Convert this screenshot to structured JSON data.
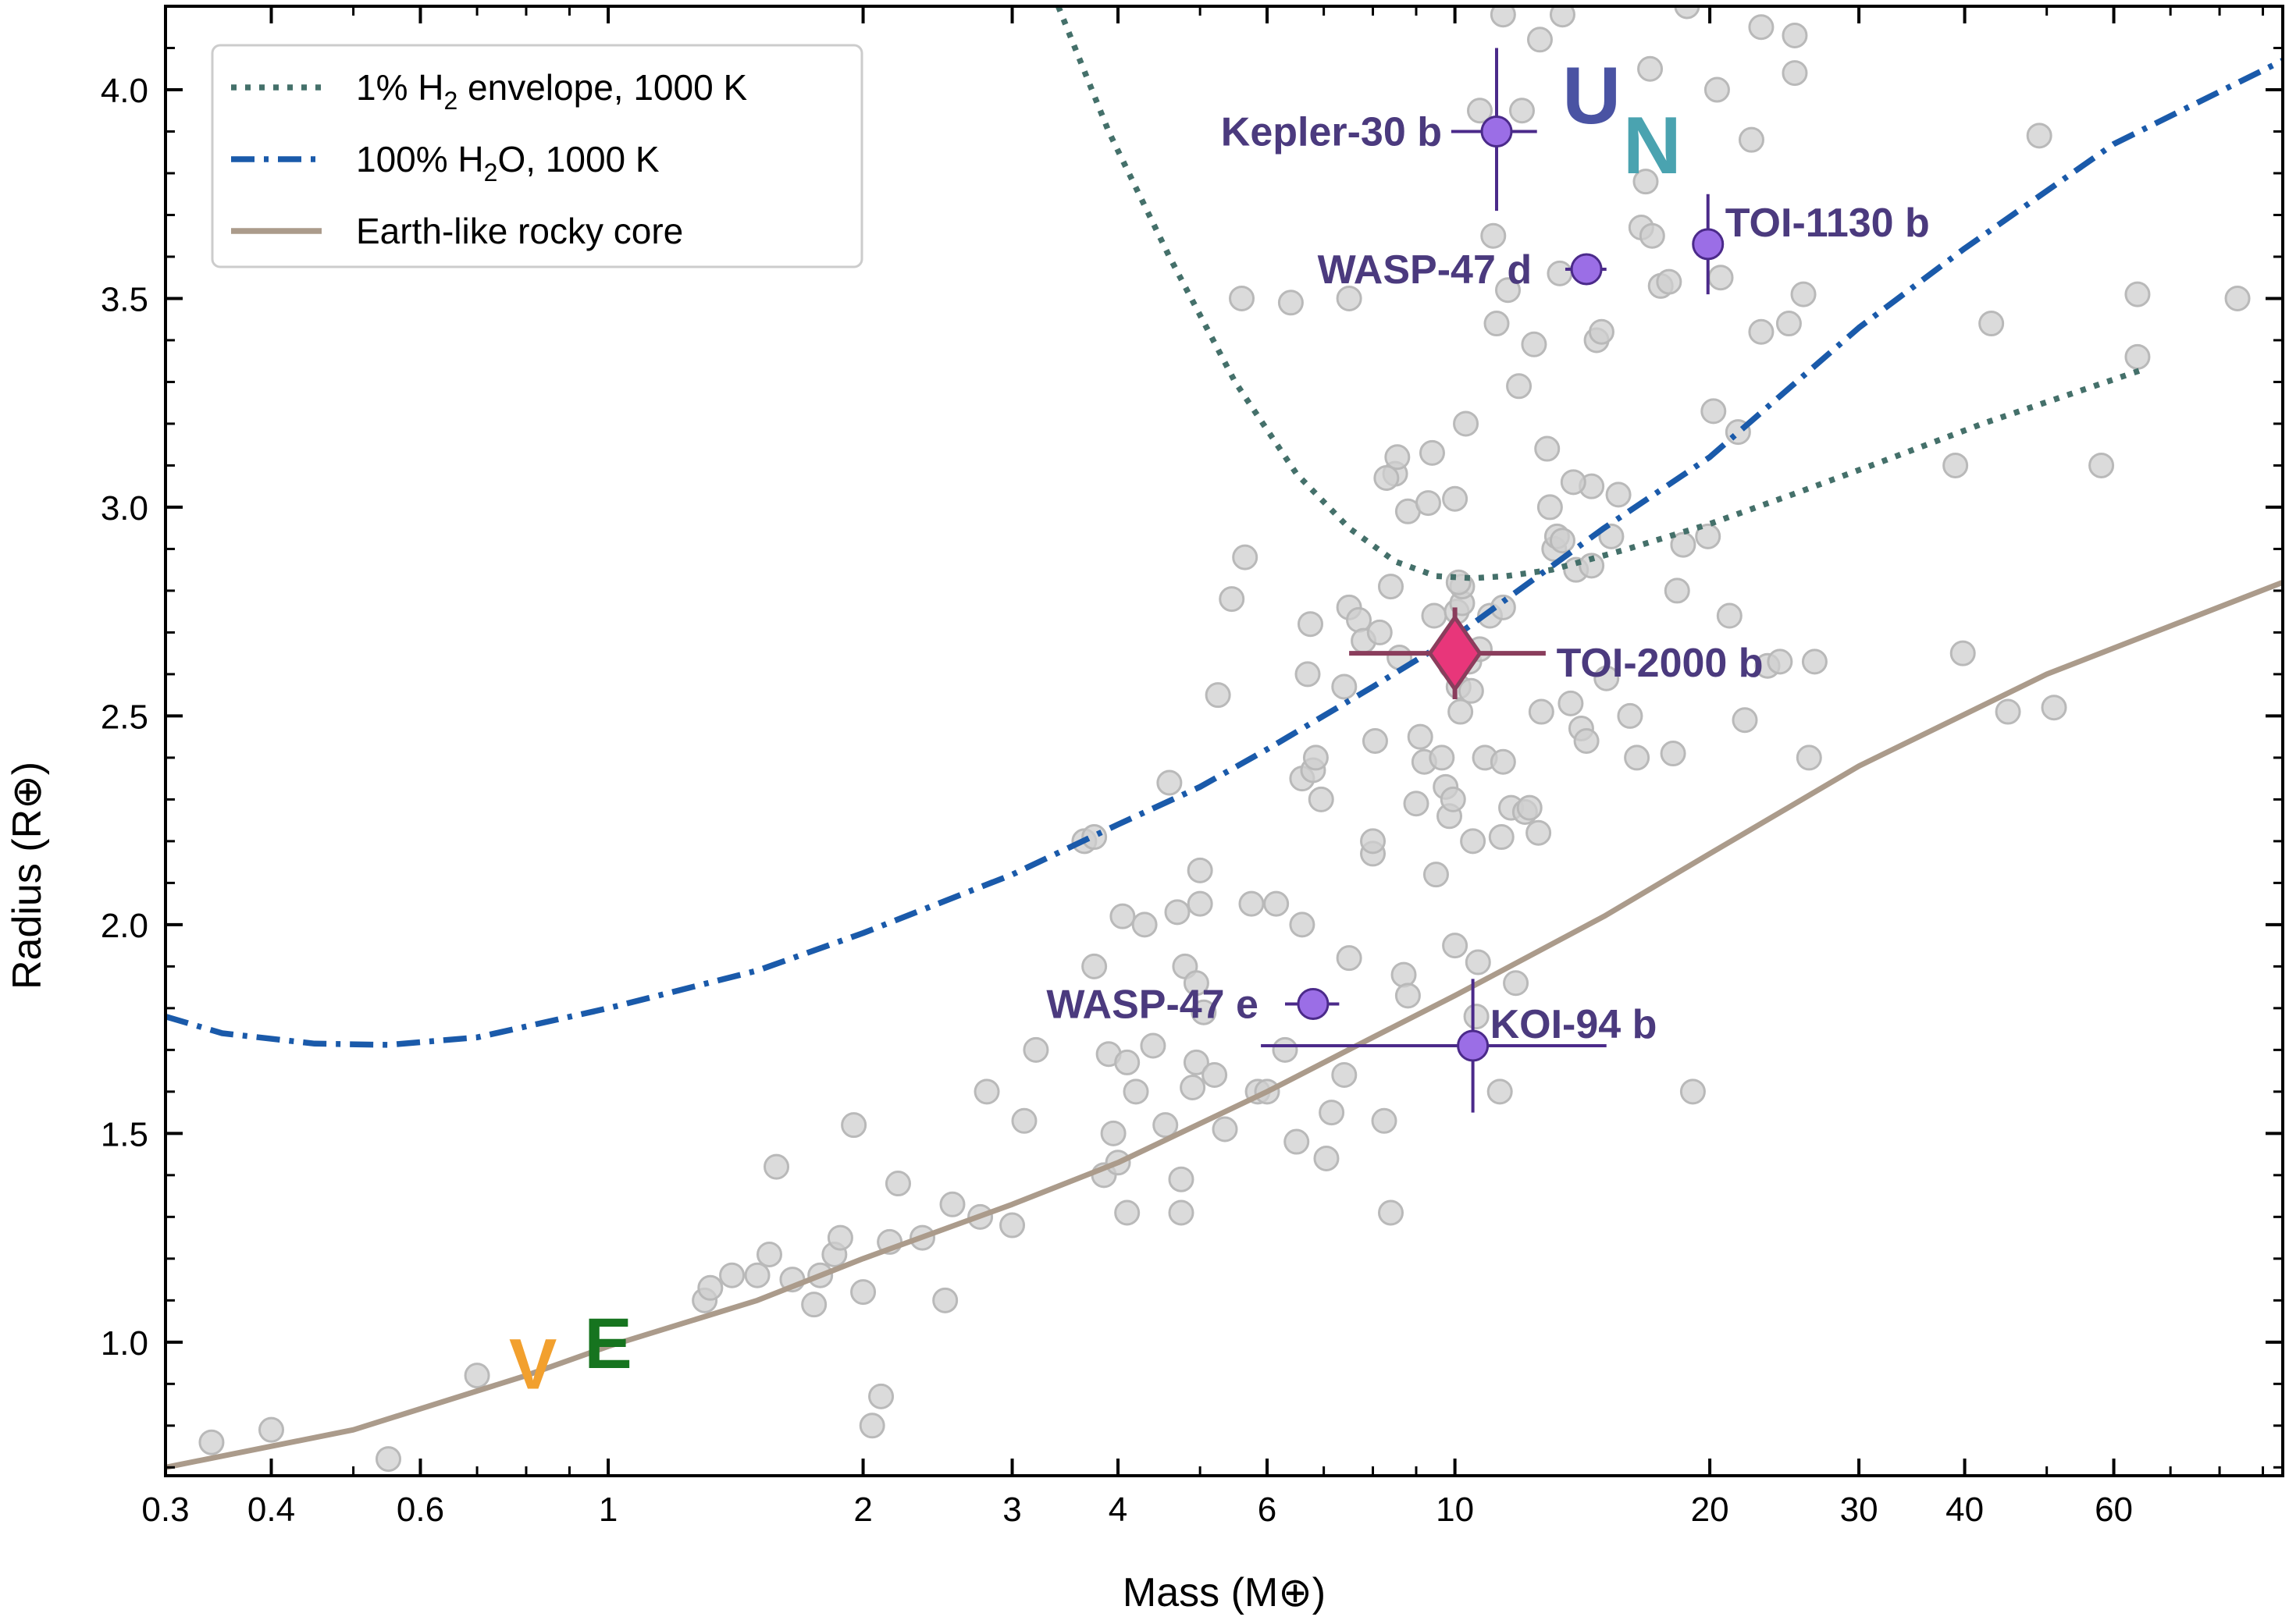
{
  "chart_data": {
    "type": "scatter",
    "xlabel": "Mass (M⊕)",
    "ylabel": "Radius (R⊕)",
    "xscale": "log",
    "xlim": [
      0.3,
      95
    ],
    "ylim": [
      0.68,
      4.2
    ],
    "x_ticks": [
      0.3,
      0.4,
      0.6,
      1,
      2,
      3,
      4,
      6,
      10,
      20,
      30,
      40,
      60
    ],
    "x_tick_labels": [
      "0.3",
      "0.4",
      "0.6",
      "1",
      "2",
      "3",
      "4",
      "6",
      "10",
      "20",
      "30",
      "40",
      "60"
    ],
    "y_ticks": [
      1.0,
      1.5,
      2.0,
      2.5,
      3.0,
      3.5,
      4.0
    ],
    "y_tick_labels": [
      "1.0",
      "1.5",
      "2.0",
      "2.5",
      "3.0",
      "3.5",
      "4.0"
    ],
    "grid": false,
    "legend": {
      "placement": "top-left",
      "entries": [
        {
          "label_parts": [
            "1% H",
            "2",
            " envelope, 1000 K"
          ],
          "style": "dotted",
          "color": "#44706a"
        },
        {
          "label_parts": [
            "100% H",
            "2",
            "O, 1000 K"
          ],
          "style": "dashdot",
          "color": "#1a5aaa"
        },
        {
          "label_parts": [
            "Earth-like rocky core",
            "",
            ""
          ],
          "style": "solid",
          "color": "#ab9b8b"
        }
      ]
    },
    "curves": [
      {
        "style": "dotted",
        "color": "#44706a",
        "points": [
          [
            3.4,
            4.2
          ],
          [
            3.9,
            3.9
          ],
          [
            4.6,
            3.6
          ],
          [
            5.5,
            3.3
          ],
          [
            6.5,
            3.08
          ],
          [
            7.5,
            2.95
          ],
          [
            8.5,
            2.87
          ],
          [
            9.5,
            2.835
          ],
          [
            10.5,
            2.83
          ],
          [
            11.5,
            2.835
          ],
          [
            13,
            2.85
          ],
          [
            16,
            2.9
          ],
          [
            20,
            2.96
          ],
          [
            25,
            3.03
          ],
          [
            32,
            3.11
          ],
          [
            42,
            3.2
          ],
          [
            55,
            3.28
          ],
          [
            65,
            3.33
          ]
        ]
      },
      {
        "style": "dashdot",
        "color": "#1a5aaa",
        "points": [
          [
            0.3,
            1.78
          ],
          [
            0.35,
            1.74
          ],
          [
            0.45,
            1.715
          ],
          [
            0.55,
            1.712
          ],
          [
            0.7,
            1.73
          ],
          [
            1.0,
            1.8
          ],
          [
            1.5,
            1.89
          ],
          [
            2.0,
            1.98
          ],
          [
            3.0,
            2.12
          ],
          [
            4.0,
            2.24
          ],
          [
            5.0,
            2.33
          ],
          [
            6.0,
            2.42
          ],
          [
            8.0,
            2.57
          ],
          [
            10.0,
            2.69
          ],
          [
            15.0,
            2.95
          ],
          [
            20.0,
            3.12
          ],
          [
            30.0,
            3.43
          ],
          [
            40.0,
            3.62
          ],
          [
            60.0,
            3.87
          ],
          [
            95.0,
            4.07
          ]
        ]
      },
      {
        "style": "solid",
        "color": "#ab9b8b",
        "points": [
          [
            0.3,
            0.7
          ],
          [
            0.5,
            0.79
          ],
          [
            0.8,
            0.92
          ],
          [
            1.0,
            0.99
          ],
          [
            1.5,
            1.1
          ],
          [
            2.0,
            1.2
          ],
          [
            3.0,
            1.33
          ],
          [
            4.0,
            1.43
          ],
          [
            6.0,
            1.6
          ],
          [
            8.0,
            1.73
          ],
          [
            10.0,
            1.83
          ],
          [
            15.0,
            2.02
          ],
          [
            20.0,
            2.17
          ],
          [
            30.0,
            2.38
          ],
          [
            50.0,
            2.6
          ],
          [
            95.0,
            2.82
          ]
        ]
      }
    ],
    "background_points": [
      [
        0.34,
        0.76
      ],
      [
        0.4,
        0.79
      ],
      [
        0.55,
        0.72
      ],
      [
        0.7,
        0.92
      ],
      [
        1.3,
        1.1
      ],
      [
        1.32,
        1.13
      ],
      [
        1.4,
        1.16
      ],
      [
        1.5,
        1.16
      ],
      [
        1.55,
        1.21
      ],
      [
        1.58,
        1.42
      ],
      [
        1.65,
        1.15
      ],
      [
        1.75,
        1.09
      ],
      [
        1.78,
        1.16
      ],
      [
        1.85,
        1.21
      ],
      [
        1.88,
        1.25
      ],
      [
        1.95,
        1.52
      ],
      [
        2.0,
        1.12
      ],
      [
        2.05,
        0.8
      ],
      [
        2.1,
        0.87
      ],
      [
        2.15,
        1.24
      ],
      [
        2.2,
        1.38
      ],
      [
        2.35,
        1.25
      ],
      [
        2.55,
        1.33
      ],
      [
        2.75,
        1.3
      ],
      [
        2.8,
        1.6
      ],
      [
        3.0,
        1.28
      ],
      [
        3.1,
        1.53
      ],
      [
        3.65,
        2.2
      ],
      [
        3.75,
        2.21
      ],
      [
        3.75,
        1.9
      ],
      [
        3.85,
        1.4
      ],
      [
        3.9,
        1.69
      ],
      [
        3.95,
        1.5
      ],
      [
        4.0,
        1.43
      ],
      [
        4.1,
        1.31
      ],
      [
        4.2,
        1.6
      ],
      [
        4.1,
        1.67
      ],
      [
        4.05,
        2.02
      ],
      [
        4.3,
        2.0
      ],
      [
        4.4,
        1.71
      ],
      [
        4.55,
        1.52
      ],
      [
        4.6,
        2.34
      ],
      [
        4.7,
        2.03
      ],
      [
        4.8,
        1.9
      ],
      [
        4.75,
        1.39
      ],
      [
        4.75,
        1.31
      ],
      [
        4.9,
        1.61
      ],
      [
        4.95,
        1.67
      ],
      [
        4.95,
        1.86
      ],
      [
        5.0,
        2.05
      ],
      [
        5.0,
        2.13
      ],
      [
        5.05,
        1.79
      ],
      [
        5.2,
        1.64
      ],
      [
        5.25,
        2.55
      ],
      [
        5.35,
        1.51
      ],
      [
        5.45,
        2.78
      ],
      [
        5.65,
        2.88
      ],
      [
        5.75,
        2.05
      ],
      [
        5.85,
        1.6
      ],
      [
        6.0,
        1.6
      ],
      [
        6.15,
        2.05
      ],
      [
        6.3,
        1.7
      ],
      [
        6.5,
        1.48
      ],
      [
        6.6,
        2.35
      ],
      [
        6.7,
        2.6
      ],
      [
        6.75,
        2.72
      ],
      [
        6.8,
        2.37
      ],
      [
        6.85,
        2.4
      ],
      [
        6.95,
        2.3
      ],
      [
        7.05,
        1.44
      ],
      [
        7.15,
        1.55
      ],
      [
        7.4,
        1.64
      ],
      [
        7.5,
        1.92
      ],
      [
        7.5,
        2.76
      ],
      [
        7.7,
        2.73
      ],
      [
        7.8,
        2.68
      ],
      [
        8.0,
        2.17
      ],
      [
        8.0,
        2.2
      ],
      [
        8.05,
        2.44
      ],
      [
        8.15,
        2.7
      ],
      [
        8.25,
        1.53
      ],
      [
        8.4,
        1.31
      ],
      [
        8.5,
        3.08
      ],
      [
        8.55,
        3.12
      ],
      [
        8.6,
        2.64
      ],
      [
        8.7,
        1.88
      ],
      [
        8.8,
        2.99
      ],
      [
        8.8,
        1.83
      ],
      [
        9.0,
        2.29
      ],
      [
        9.1,
        2.45
      ],
      [
        9.2,
        2.39
      ],
      [
        9.3,
        3.01
      ],
      [
        9.4,
        3.13
      ],
      [
        9.45,
        2.74
      ],
      [
        9.5,
        2.12
      ],
      [
        9.65,
        2.4
      ],
      [
        9.75,
        2.33
      ],
      [
        9.85,
        2.26
      ],
      [
        9.95,
        2.3
      ],
      [
        10.0,
        1.95
      ],
      [
        10.05,
        2.75
      ],
      [
        10.1,
        2.57
      ],
      [
        10.15,
        2.51
      ],
      [
        10.2,
        2.77
      ],
      [
        10.3,
        3.2
      ],
      [
        10.45,
        2.56
      ],
      [
        10.5,
        2.2
      ],
      [
        10.6,
        1.78
      ],
      [
        10.65,
        1.91
      ],
      [
        10.7,
        3.95
      ],
      [
        10.85,
        2.4
      ],
      [
        11.0,
        2.74
      ],
      [
        11.1,
        3.65
      ],
      [
        11.2,
        3.44
      ],
      [
        11.3,
        1.6
      ],
      [
        11.35,
        2.21
      ],
      [
        11.4,
        2.39
      ],
      [
        11.55,
        3.52
      ],
      [
        11.65,
        2.28
      ],
      [
        11.8,
        1.86
      ],
      [
        11.9,
        3.29
      ],
      [
        12.1,
        2.27
      ],
      [
        12.25,
        2.28
      ],
      [
        12.4,
        3.39
      ],
      [
        12.55,
        2.22
      ],
      [
        12.65,
        2.51
      ],
      [
        12.85,
        3.14
      ],
      [
        12.95,
        3.0
      ],
      [
        13.1,
        2.9
      ],
      [
        13.2,
        2.93
      ],
      [
        13.4,
        2.92
      ],
      [
        13.7,
        2.53
      ],
      [
        13.9,
        2.85
      ],
      [
        14.1,
        2.47
      ],
      [
        14.3,
        2.44
      ],
      [
        14.5,
        3.05
      ],
      [
        14.7,
        3.4
      ],
      [
        14.9,
        3.42
      ],
      [
        15.1,
        2.59
      ],
      [
        15.3,
        2.93
      ],
      [
        15.6,
        3.03
      ],
      [
        16.1,
        2.5
      ],
      [
        16.4,
        2.4
      ],
      [
        16.6,
        3.67
      ],
      [
        16.8,
        3.78
      ],
      [
        17.1,
        3.65
      ],
      [
        17.5,
        3.53
      ],
      [
        17.9,
        3.54
      ],
      [
        18.1,
        2.41
      ],
      [
        18.3,
        2.8
      ],
      [
        18.6,
        2.91
      ],
      [
        19.1,
        1.6
      ],
      [
        19.9,
        2.93
      ],
      [
        20.2,
        3.23
      ],
      [
        20.6,
        3.55
      ],
      [
        21.1,
        2.74
      ],
      [
        21.6,
        3.18
      ],
      [
        22.0,
        2.49
      ],
      [
        22.4,
        3.88
      ],
      [
        23.0,
        3.42
      ],
      [
        23.4,
        2.62
      ],
      [
        24.2,
        2.63
      ],
      [
        24.8,
        3.44
      ],
      [
        25.2,
        4.13
      ],
      [
        25.8,
        3.51
      ],
      [
        26.2,
        2.4
      ],
      [
        26.6,
        2.63
      ],
      [
        39.0,
        3.1
      ],
      [
        39.8,
        2.65
      ],
      [
        43.0,
        3.44
      ],
      [
        45.0,
        2.51
      ],
      [
        49.0,
        3.89
      ],
      [
        51.0,
        2.52
      ],
      [
        58.0,
        3.1
      ],
      [
        64.0,
        3.36
      ],
      [
        64.0,
        3.51
      ],
      [
        84.0,
        3.5
      ],
      [
        2.5,
        1.1
      ],
      [
        6.6,
        2.0
      ],
      [
        7.4,
        2.57
      ],
      [
        9.9,
        2.62
      ],
      [
        10.4,
        2.63
      ],
      [
        10.7,
        2.66
      ],
      [
        8.4,
        2.81
      ],
      [
        10.2,
        2.81
      ],
      [
        10.1,
        2.82
      ],
      [
        7.5,
        3.5
      ],
      [
        10.0,
        3.02
      ],
      [
        11.4,
        2.76
      ],
      [
        5.6,
        3.5
      ],
      [
        3.2,
        1.7
      ],
      [
        8.3,
        3.07
      ],
      [
        13.8,
        3.06
      ],
      [
        14.5,
        2.86
      ],
      [
        12.0,
        3.95
      ],
      [
        17.0,
        4.05
      ],
      [
        20.4,
        4.0
      ],
      [
        12.6,
        4.12
      ],
      [
        13.4,
        4.18
      ],
      [
        18.8,
        4.2
      ],
      [
        23.0,
        4.15
      ],
      [
        25.2,
        4.04
      ],
      [
        6.4,
        3.49
      ],
      [
        13.3,
        3.56
      ],
      [
        11.4,
        4.18
      ]
    ],
    "labeled_planets": [
      {
        "name": "Kepler-30b",
        "label": "Kepler-30 b",
        "x": 11.2,
        "y": 3.9,
        "x_err": [
          1.3,
          1.3
        ],
        "y_err": [
          0.19,
          0.2
        ],
        "label_side": "left"
      },
      {
        "name": "WASP-47d",
        "label": "WASP-47 d",
        "x": 14.3,
        "y": 3.57,
        "x_err": [
          0.8,
          0.8
        ],
        "y_err": [
          0.02,
          0.02
        ],
        "label_side": "left"
      },
      {
        "name": "TOI-1130b",
        "label": "TOI-1130 b",
        "x": 19.9,
        "y": 3.63,
        "x_err": [
          0.0,
          0.0
        ],
        "y_err": [
          0.12,
          0.12
        ],
        "label_side": "right"
      },
      {
        "name": "WASP-47e",
        "label": "WASP-47 e",
        "x": 6.8,
        "y": 1.81,
        "x_err": [
          0.5,
          0.5
        ],
        "y_err": [
          0.02,
          0.02
        ],
        "label_side": "left"
      },
      {
        "name": "KOI-94b",
        "label": "KOI-94 b",
        "x": 10.5,
        "y": 1.71,
        "x_err": [
          4.6,
          4.6
        ],
        "y_err": [
          0.16,
          0.16
        ],
        "label_side": "right"
      }
    ],
    "highlight_planet": {
      "name": "TOI-2000b",
      "label": "TOI-2000 b",
      "x": 10.0,
      "y": 2.65,
      "x_err": [
        2.5,
        2.8
      ],
      "y_err": [
        0.11,
        0.11
      ],
      "color": "#e8367a"
    },
    "solar_system": [
      {
        "label": "V",
        "x": 0.815,
        "y": 0.95,
        "color": "#f2a02e"
      },
      {
        "label": "E",
        "x": 1.0,
        "y": 1.0,
        "color": "#16741f"
      },
      {
        "label": "U",
        "x": 14.5,
        "y": 3.99,
        "color": "#4a53a3"
      },
      {
        "label": "N",
        "x": 17.1,
        "y": 3.87,
        "color": "#4aa3b0"
      }
    ]
  }
}
